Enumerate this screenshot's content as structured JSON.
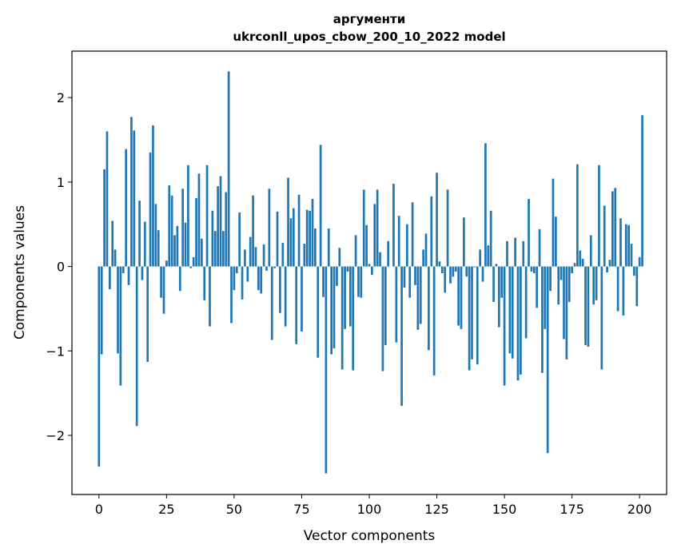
{
  "chart_data": {
    "type": "bar",
    "title_line1": "аргументи",
    "title_line2": "ukrconll_upos_cbow_200_10_2022 model",
    "xlabel": "Vector components",
    "ylabel": "Components values",
    "xlim": [
      -10,
      210
    ],
    "ylim": [
      -2.7,
      2.55
    ],
    "xticks": [
      0,
      25,
      50,
      75,
      100,
      125,
      150,
      175,
      200
    ],
    "yticks": [
      -2,
      -1,
      0,
      1,
      2
    ],
    "xtick_labels": [
      "0",
      "25",
      "50",
      "75",
      "100",
      "125",
      "150",
      "175",
      "200"
    ],
    "ytick_labels": [
      "−2",
      "−1",
      "0",
      "1",
      "2"
    ],
    "bar_color": "#1f77b4",
    "grid": false,
    "values": [
      -2.37,
      -1.04,
      1.15,
      1.6,
      -0.27,
      0.54,
      0.2,
      -1.03,
      -1.41,
      -0.08,
      1.39,
      -0.22,
      1.77,
      1.61,
      -1.89,
      0.78,
      -0.16,
      0.53,
      -1.13,
      1.35,
      1.67,
      0.74,
      0.43,
      -0.37,
      -0.56,
      0.07,
      0.96,
      0.84,
      0.37,
      0.48,
      -0.29,
      0.92,
      0.52,
      1.2,
      -0.02,
      0.11,
      0.81,
      1.1,
      0.33,
      -0.4,
      1.2,
      -0.71,
      0.66,
      0.42,
      0.95,
      1.07,
      0.42,
      0.88,
      2.31,
      -0.67,
      -0.28,
      -0.08,
      0.64,
      -0.39,
      0.2,
      -0.18,
      0.35,
      0.84,
      0.23,
      -0.28,
      -0.32,
      0.26,
      -0.05,
      0.92,
      -0.87,
      -0.02,
      0.65,
      -0.55,
      0.28,
      -0.71,
      1.05,
      0.57,
      0.69,
      -0.92,
      0.85,
      -0.77,
      0.27,
      0.67,
      0.66,
      0.8,
      0.45,
      -1.08,
      1.44,
      -0.36,
      -2.45,
      0.45,
      -1.04,
      -0.97,
      -0.23,
      0.22,
      -1.22,
      -0.74,
      -0.06,
      -0.71,
      -1.23,
      0.37,
      -0.36,
      -0.37,
      0.91,
      0.49,
      0.03,
      -0.1,
      0.74,
      0.91,
      0.17,
      -1.24,
      -0.93,
      0.3,
      0.0,
      0.98,
      -0.9,
      0.6,
      -1.65,
      -0.25,
      0.5,
      -0.37,
      0.76,
      -0.22,
      -0.75,
      -0.68,
      0.2,
      0.39,
      -0.99,
      0.83,
      -1.29,
      1.11,
      0.06,
      -0.08,
      -0.31,
      0.91,
      -0.2,
      -0.12,
      -0.06,
      -0.7,
      -0.74,
      0.58,
      -0.12,
      -1.23,
      -1.1,
      -0.01,
      -1.16,
      0.2,
      -0.18,
      1.46,
      0.25,
      0.66,
      -0.42,
      0.03,
      -0.72,
      -0.37,
      -1.41,
      0.3,
      -1.03,
      -1.09,
      0.34,
      -1.35,
      -1.28,
      0.3,
      -0.85,
      0.8,
      -0.06,
      -0.08,
      -0.49,
      0.44,
      -1.26,
      -0.74,
      -2.21,
      -0.29,
      1.04,
      0.59,
      -0.45,
      -0.16,
      -0.86,
      -1.1,
      -0.42,
      -0.08,
      0.04,
      1.21,
      0.19,
      0.09,
      -0.93,
      -0.95,
      0.37,
      -0.45,
      -0.4,
      1.2,
      -1.22,
      0.72,
      -0.07,
      0.08,
      0.89,
      0.93,
      -0.53,
      0.57,
      -0.58,
      0.5,
      0.49,
      0.27,
      -0.11,
      -0.47,
      0.11,
      1.79
    ]
  }
}
